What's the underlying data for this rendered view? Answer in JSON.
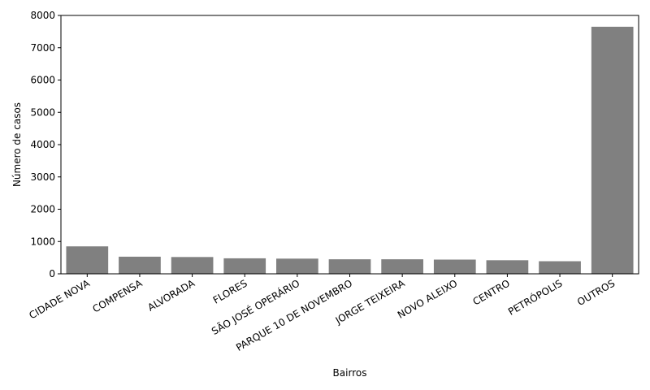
{
  "chart_data": {
    "type": "bar",
    "xlabel": "Bairros",
    "ylabel": "Número de casos",
    "ylim": [
      0,
      8000
    ],
    "yticks": [
      0,
      1000,
      2000,
      3000,
      4000,
      5000,
      6000,
      7000,
      8000
    ],
    "categories": [
      "CIDADE NOVA",
      "COMPENSA",
      "ALVORADA",
      "FLORES",
      "SÃO JOSÉ OPERÁRIO",
      "PARQUE 10 DE NOVEMBRO",
      "JORGE TEIXEIRA",
      "NOVO ALEIXO",
      "CENTRO",
      "PETRÓPOLIS",
      "OUTROS"
    ],
    "values": [
      850,
      530,
      520,
      480,
      470,
      450,
      450,
      440,
      420,
      390,
      7650
    ],
    "bar_color": "#808080",
    "grid": false,
    "legend": "none"
  }
}
